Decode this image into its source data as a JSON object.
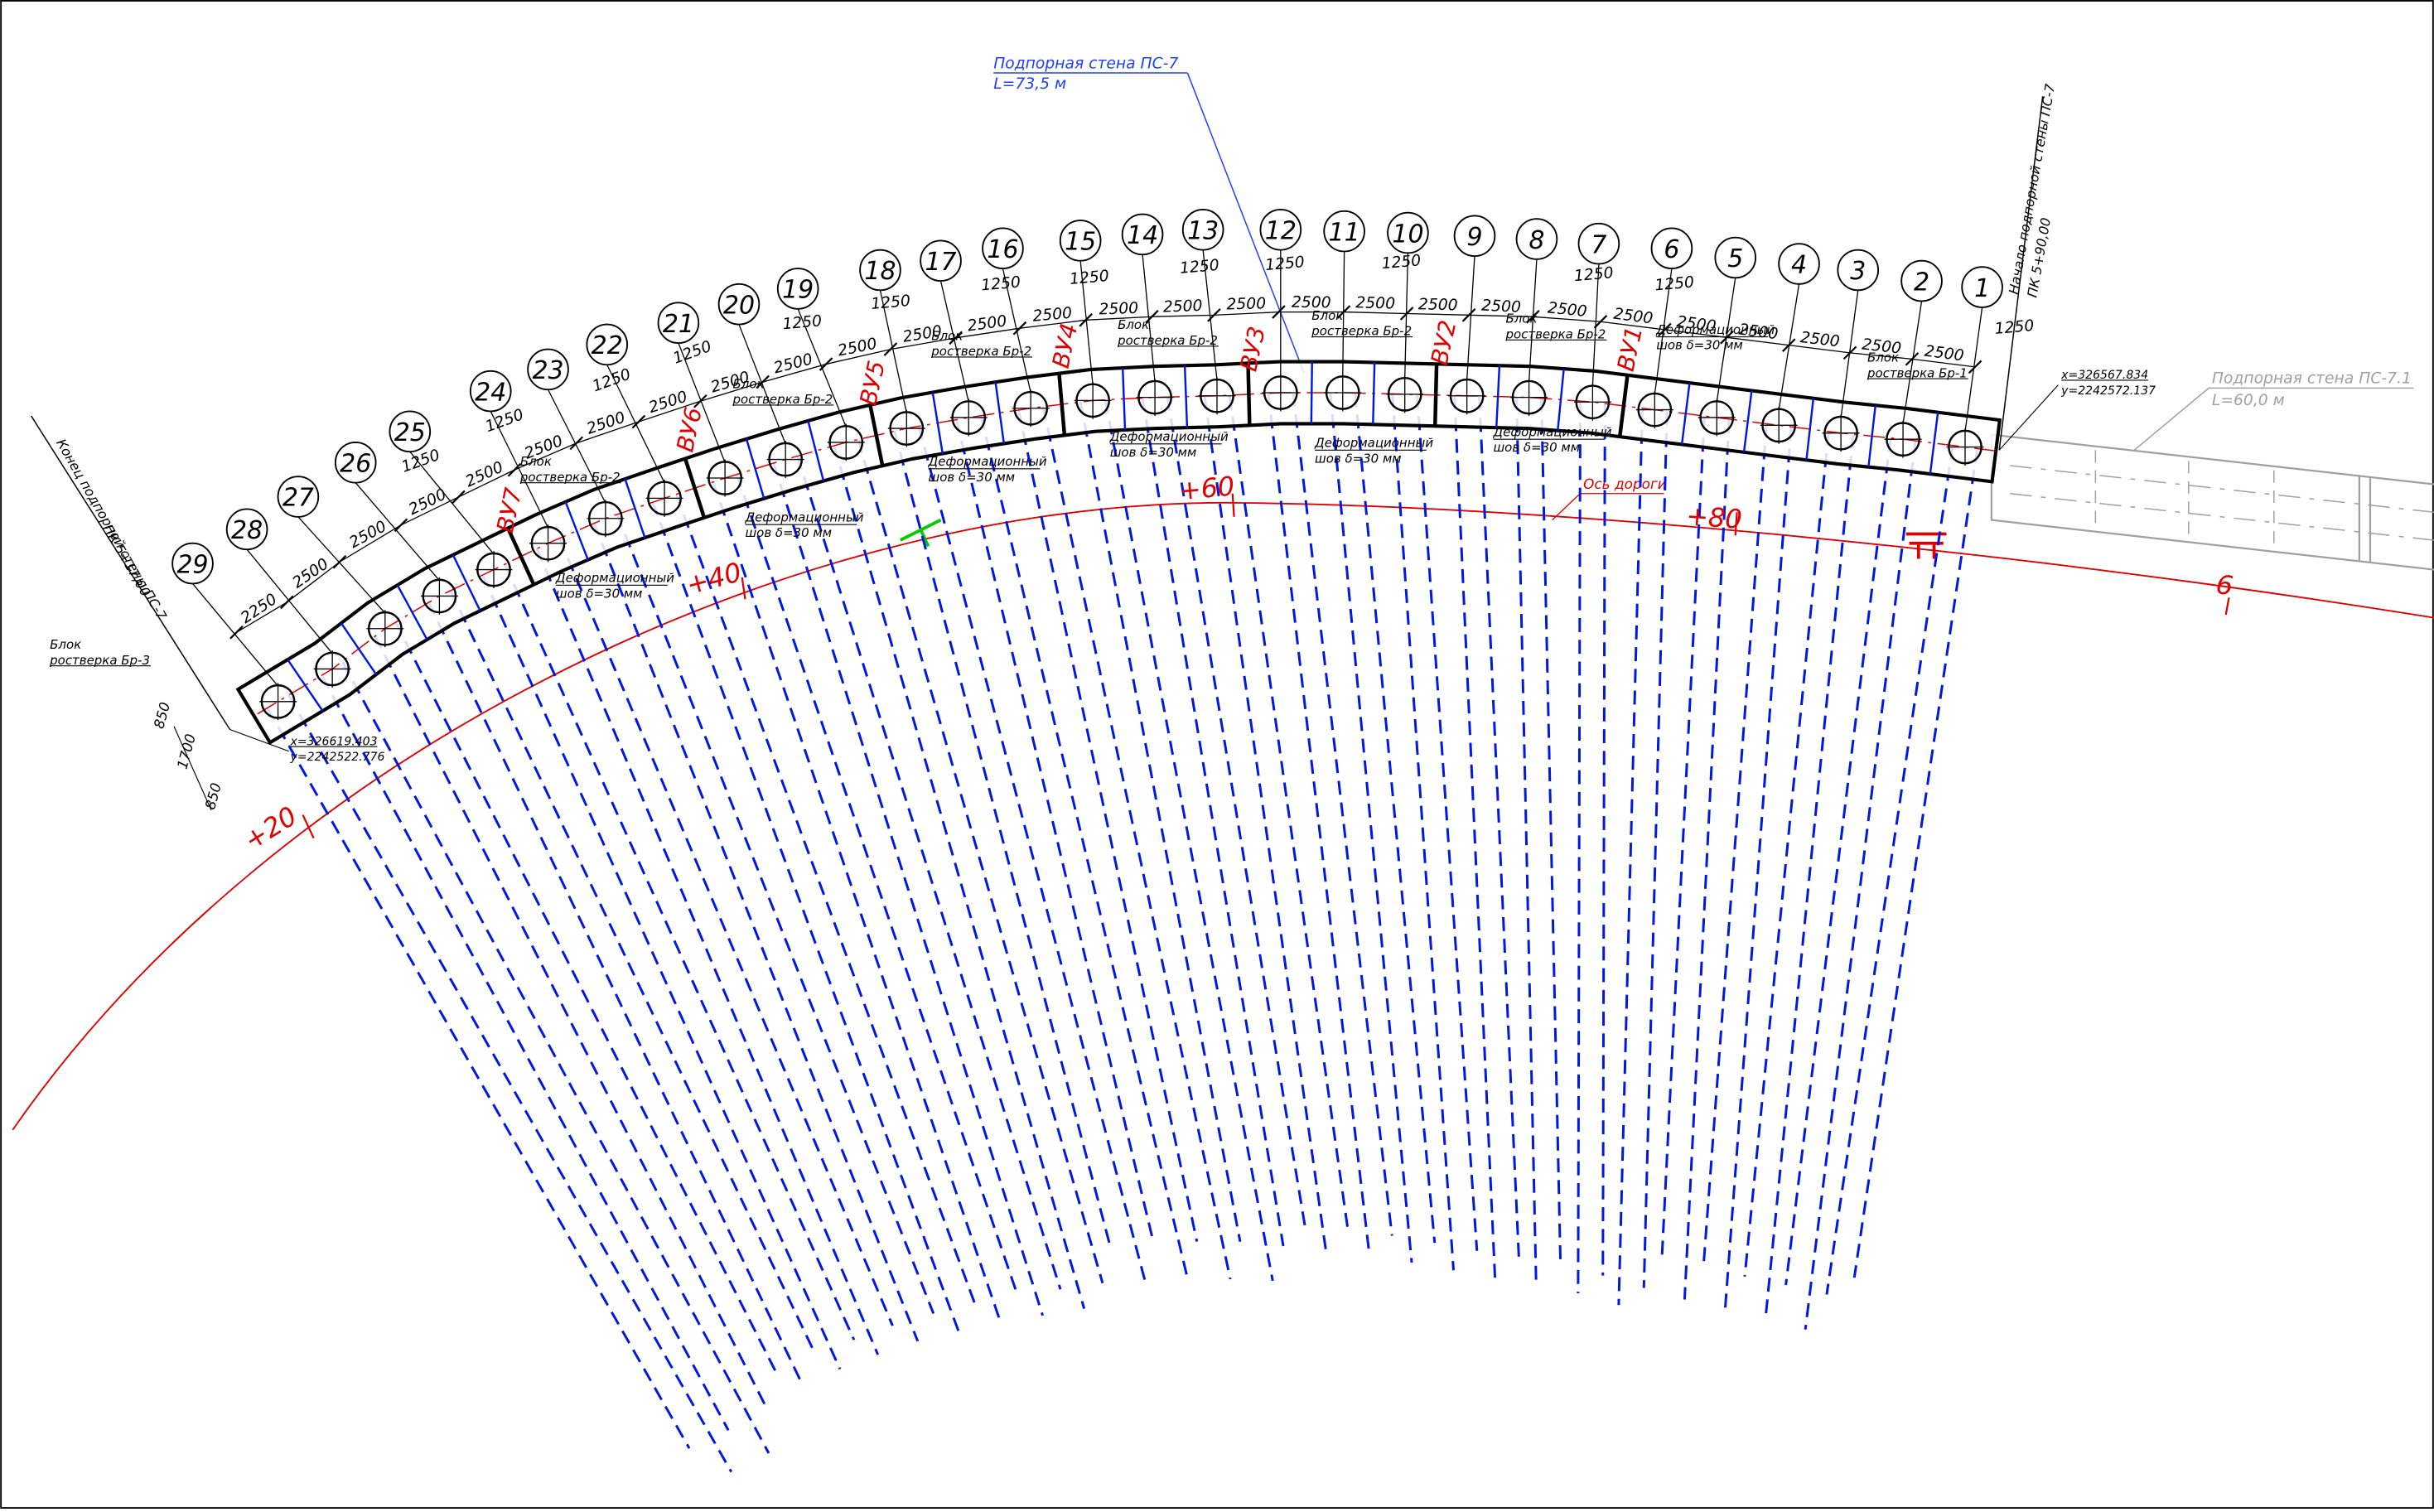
{
  "callouts": [
    {
      "title": "Подпорная стена ПС-7",
      "length": "L=73,5 м"
    },
    {
      "title": "Подпорная стена ПС-7.1",
      "length": "L=60,0 м"
    }
  ],
  "piles": [
    "1",
    "2",
    "3",
    "4",
    "5",
    "6",
    "7",
    "8",
    "9",
    "10",
    "11",
    "12",
    "13",
    "14",
    "15",
    "16",
    "17",
    "18",
    "19",
    "20",
    "21",
    "22",
    "23",
    "24",
    "25",
    "26",
    "27",
    "28",
    "29"
  ],
  "spacing_dims": [
    "2500",
    "2500",
    "2500",
    "2500",
    "2500",
    "2500",
    "2500",
    "2500",
    "2500",
    "2500",
    "2500",
    "2500",
    "2500",
    "2500",
    "2500",
    "2500",
    "2500",
    "2500",
    "2500",
    "2500",
    "2500",
    "2500",
    "2500",
    "2500",
    "2500",
    "2500",
    "2500",
    "2250"
  ],
  "half_dims": [
    "1250",
    "1250",
    "1250",
    "1250",
    "1250",
    "1250",
    "1250",
    "1250",
    "1250",
    "1250",
    "1250",
    "1250",
    "1250",
    "1250"
  ],
  "joints": [
    "ВУ1",
    "ВУ2",
    "ВУ3",
    "ВУ4",
    "ВУ5",
    "ВУ6",
    "ВУ7"
  ],
  "blocks": [
    {
      "line1": "Блок",
      "line2": "ростверка Бр-1"
    },
    {
      "line1": "Блок",
      "line2": "ростверка Бр-2"
    },
    {
      "line1": "Блок",
      "line2": "ростверка Бр-2"
    },
    {
      "line1": "Блок",
      "line2": "ростверка Бр-2"
    },
    {
      "line1": "Блок",
      "line2": "ростверка Бр-2"
    },
    {
      "line1": "Блок",
      "line2": "ростверка Бр-2"
    },
    {
      "line1": "Блок",
      "line2": "ростверка Бр-2"
    },
    {
      "line1": "Блок",
      "line2": "ростверка Бр-3"
    }
  ],
  "seams": [
    {
      "line1": "Деформационный",
      "line2": "шов δ=30 мм"
    },
    {
      "line1": "Деформационный",
      "line2": "шов δ=30 мм"
    },
    {
      "line1": "Деформационный",
      "line2": "шов δ=30 мм"
    },
    {
      "line1": "Деформационный",
      "line2": "шов δ=30 мм"
    },
    {
      "line1": "Деформационный",
      "line2": "шов δ=30 мм"
    },
    {
      "line1": "Деформационный",
      "line2": "шов δ=30 мм"
    },
    {
      "line1": "Деформационный",
      "line2": "шов δ=30 мм"
    }
  ],
  "coordinates": [
    {
      "x": "x=326567.834",
      "y": "y=2242572.137"
    },
    {
      "x": "x=326619.403",
      "y": "y=2242522.776"
    }
  ],
  "stations": [
    "+20",
    "+40",
    "+60",
    "+80",
    "6"
  ],
  "road_axis": "Ось дороги",
  "wall_start": {
    "line1": "Начало подпорной стены ПС-7",
    "line2": "ПК 5+90,00"
  },
  "wall_end": {
    "line1": "Конец подпорной стены ПС-7",
    "line2": "ПК 5+17,00"
  },
  "end_dims": [
    "850",
    "1700",
    "850"
  ]
}
